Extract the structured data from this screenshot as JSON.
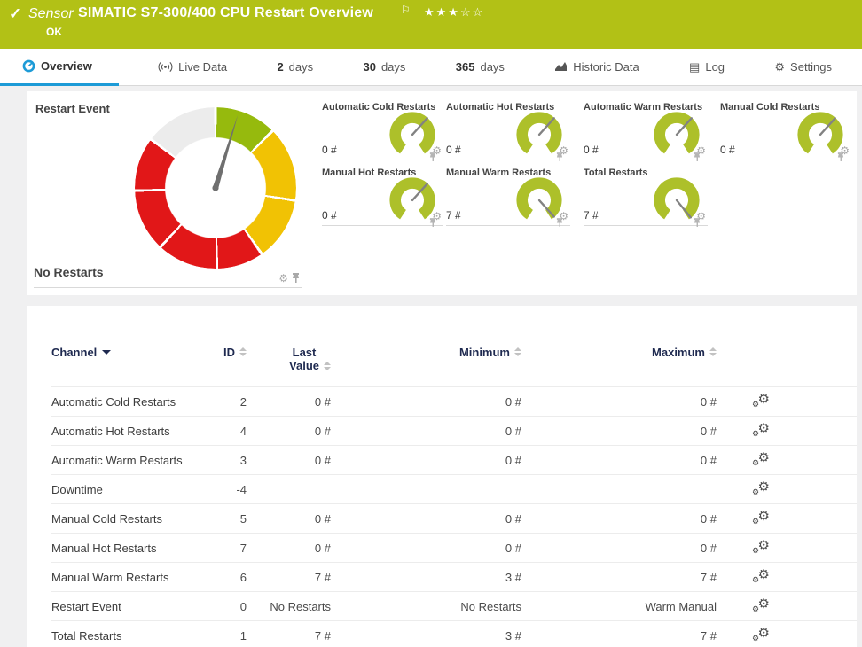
{
  "colors": {
    "header_bg": "#b2c116",
    "accent_blue": "#1d9bd7",
    "lime": "#adc02a",
    "green": "#96ba0d",
    "yellow": "#f1c204",
    "red": "#e11718",
    "gray_seg": "#ececec",
    "needle": "#6f6f6f",
    "mini_needle": "#828282"
  },
  "header": {
    "kind": "Sensor",
    "title": "SIMATIC S7-300/400 CPU Restart Overview",
    "status": "OK",
    "stars": "★★★☆☆",
    "flag": "⚐",
    "check": "✓"
  },
  "tabs": [
    {
      "label": "Overview"
    },
    {
      "label": "Live Data"
    },
    {
      "num": "2",
      "label": "days"
    },
    {
      "num": "30",
      "label": "days"
    },
    {
      "num": "365",
      "label": "days"
    },
    {
      "label": "Historic Data"
    },
    {
      "label": "Log"
    },
    {
      "label": "Settings"
    }
  ],
  "gauge_panel": {
    "main_gauge": {
      "title": "Restart Event",
      "value": "No Restarts",
      "needle_deg": 17,
      "segments": [
        {
          "color": "#96ba0d",
          "from": 1,
          "to": 44
        },
        {
          "color": "#f1c204",
          "from": 46,
          "to": 98
        },
        {
          "color": "#f1c204",
          "from": 100,
          "to": 144
        },
        {
          "color": "#e11718",
          "from": 146,
          "to": 178
        },
        {
          "color": "#e11718",
          "from": 180,
          "to": 222
        },
        {
          "color": "#e11718",
          "from": 224,
          "to": 267
        },
        {
          "color": "#e11718",
          "from": 269,
          "to": 306
        },
        {
          "color": "#ececec",
          "from": 308,
          "to": 359
        }
      ]
    },
    "mini_gauges": [
      {
        "title": "Automatic Cold Restarts",
        "value": "0 #",
        "needle_deg": 42
      },
      {
        "title": "Automatic Hot Restarts",
        "value": "0 #",
        "needle_deg": 42
      },
      {
        "title": "Automatic Warm Restarts",
        "value": "0 #",
        "needle_deg": 42
      },
      {
        "title": "Manual Cold Restarts",
        "value": "0 #",
        "needle_deg": 42
      },
      {
        "title": "Manual Hot Restarts",
        "value": "0 #",
        "needle_deg": 42
      },
      {
        "title": "Manual Warm Restarts",
        "value": "7 #",
        "needle_deg": 138
      },
      {
        "title": "Total Restarts",
        "value": "7 #",
        "needle_deg": 141
      }
    ]
  },
  "table": {
    "headers": {
      "channel": "Channel",
      "id": "ID",
      "last1": "Last",
      "last2": "Value",
      "min": "Minimum",
      "max": "Maximum"
    },
    "rows": [
      {
        "channel": "Automatic Cold Restarts",
        "id": "2",
        "last": "0 #",
        "min": "0 #",
        "max": "0 #"
      },
      {
        "channel": "Automatic Hot Restarts",
        "id": "4",
        "last": "0 #",
        "min": "0 #",
        "max": "0 #"
      },
      {
        "channel": "Automatic Warm Restarts",
        "id": "3",
        "last": "0 #",
        "min": "0 #",
        "max": "0 #"
      },
      {
        "channel": "Downtime",
        "id": "-4",
        "last": "",
        "min": "",
        "max": ""
      },
      {
        "channel": "Manual Cold Restarts",
        "id": "5",
        "last": "0 #",
        "min": "0 #",
        "max": "0 #"
      },
      {
        "channel": "Manual Hot Restarts",
        "id": "7",
        "last": "0 #",
        "min": "0 #",
        "max": "0 #"
      },
      {
        "channel": "Manual Warm Restarts",
        "id": "6",
        "last": "7 #",
        "min": "3 #",
        "max": "7 #"
      },
      {
        "channel": "Restart Event",
        "id": "0",
        "last": "No Restarts",
        "min": "No Restarts",
        "max": "Warm Manual"
      },
      {
        "channel": "Total Restarts",
        "id": "1",
        "last": "7 #",
        "min": "3 #",
        "max": "7 #"
      }
    ]
  }
}
